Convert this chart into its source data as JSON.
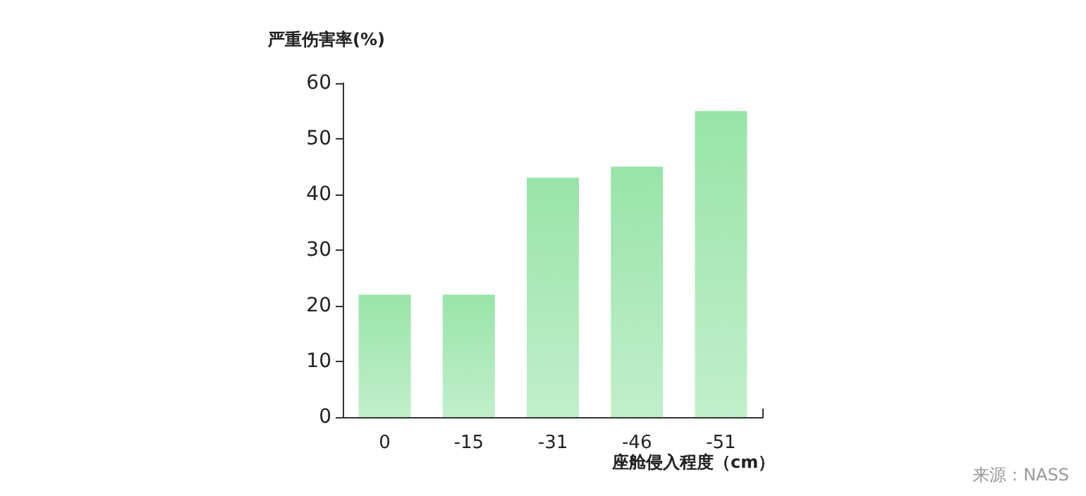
{
  "chart_data": {
    "type": "bar",
    "ylabel": "严重伤害率(%)",
    "xlabel": "座舱侵入程度（cm）",
    "annotations": [
      "来源：NASS"
    ],
    "categories": [
      "0",
      "-15",
      "-31",
      "-46",
      "-51"
    ],
    "values": [
      22,
      22,
      43,
      45,
      55
    ],
    "color": "#98e4a8",
    "ylim": [
      0,
      60
    ],
    "yticks": [
      0,
      10,
      20,
      30,
      40,
      50,
      60
    ],
    "grid": false
  }
}
